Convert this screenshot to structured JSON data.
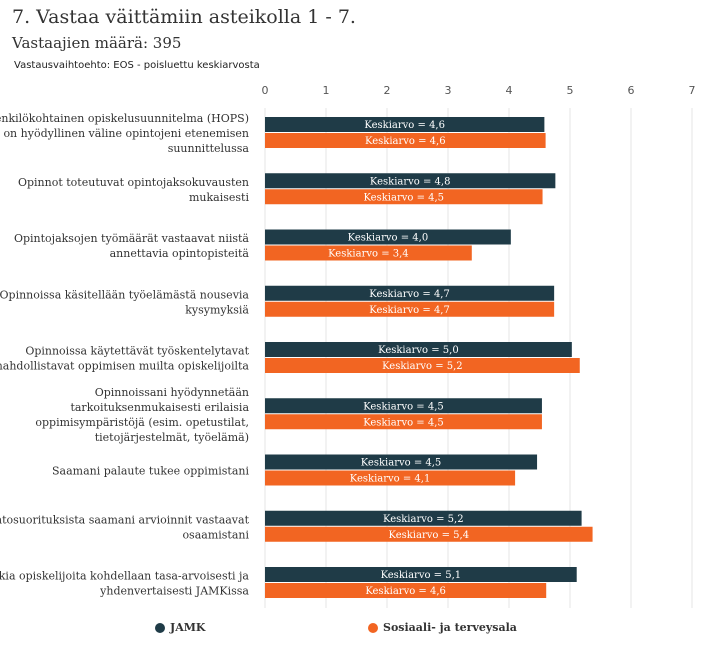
{
  "header": {
    "title": "7. Vastaa väittämiin asteikolla 1 - 7.",
    "respondents": "Vastaajien määrä: 395",
    "note": "Vastausvaihtoehto: EOS - poisluettu keskiarvosta"
  },
  "colors": {
    "JAMK": "#1f3b47",
    "Sosiaali- ja terveysala": "#f26522"
  },
  "chart_data": {
    "type": "bar",
    "orientation": "horizontal",
    "xlim": [
      0,
      7
    ],
    "ticks": [
      0,
      1,
      2,
      3,
      4,
      5,
      6,
      7
    ],
    "grid": true,
    "legend_position": "bottom",
    "label_prefix": "Keskiarvo = ",
    "categories": [
      [
        "Henkilökohtainen opiskelusuunnitelma (HOPS)",
        "on hyödyllinen väline opintojeni etenemisen",
        "suunnittelussa"
      ],
      [
        "Opinnot toteutuvat opintojaksokuvausten",
        "mukaisesti"
      ],
      [
        "Opintojaksojen työmäärät vastaavat niistä",
        "annettavia opintopisteitä"
      ],
      [
        "Opinnoissa käsitellään työelämästä nousevia",
        "kysymyksiä"
      ],
      [
        "Opinnoissa käytettävät työskentelytavat",
        "mahdollistavat oppimisen muilta opiskelijoilta"
      ],
      [
        "Opinnoissani hyödynnetään",
        "tarkoituksenmukaisesti erilaisia",
        "oppimisympäristöjä (esim. opetustilat,",
        "tietojärjestelmät, työelämä)"
      ],
      [
        "Saamani palaute tukee oppimistani"
      ],
      [
        "Opintosuorituksista saamani arvioinnit vastaavat",
        "osaamistani"
      ],
      [
        "Kaikkia opiskelijoita kohdellaan tasa-arvoisesti ja",
        "yhdenvertaisesti JAMKissa"
      ]
    ],
    "series": [
      {
        "name": "JAMK",
        "values": [
          4.58,
          4.76,
          4.03,
          4.74,
          5.03,
          4.54,
          4.46,
          5.19,
          5.11
        ],
        "labels": [
          "4,6",
          "4,8",
          "4,0",
          "4,7",
          "5,0",
          "4,5",
          "4,5",
          "5,2",
          "5,1"
        ]
      },
      {
        "name": "Sosiaali- ja terveysala",
        "values": [
          4.6,
          4.55,
          3.39,
          4.74,
          5.16,
          4.54,
          4.1,
          5.37,
          4.61
        ],
        "labels": [
          "4,6",
          "4,5",
          "3,4",
          "4,7",
          "5,2",
          "4,5",
          "4,1",
          "5,4",
          "4,6"
        ]
      }
    ]
  }
}
